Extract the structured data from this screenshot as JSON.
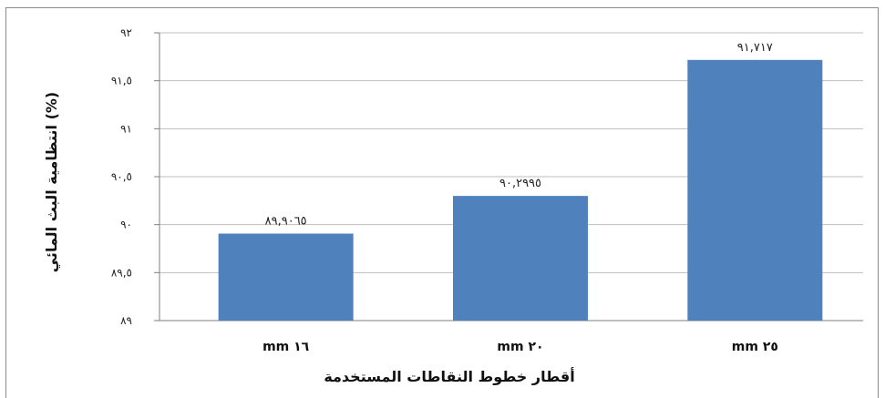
{
  "chart_data": {
    "type": "bar",
    "categories": [
      "mm ١٦",
      "mm ٢٠",
      "mm ٢٥"
    ],
    "values": [
      89.9065,
      90.2995,
      91.717
    ],
    "data_labels": [
      "٨٩,٩٠٦٥",
      "٩٠,٢٩٩٥",
      "٩١,٧١٧"
    ],
    "xlabel": "أقطار خطوط النقاطات المستخدمة",
    "ylabel": "انتظامية البث المائي (%)",
    "ylim": [
      89,
      92
    ],
    "yticks": [
      89,
      89.5,
      90,
      90.5,
      91,
      91.5,
      92
    ],
    "ytick_labels": [
      "٨٩",
      "٨٩,٥",
      "٩٠",
      "٩٠,٥",
      "٩١",
      "٩١,٥",
      "٩٢"
    ],
    "grid": true,
    "bar_color": "#4f81bd"
  }
}
